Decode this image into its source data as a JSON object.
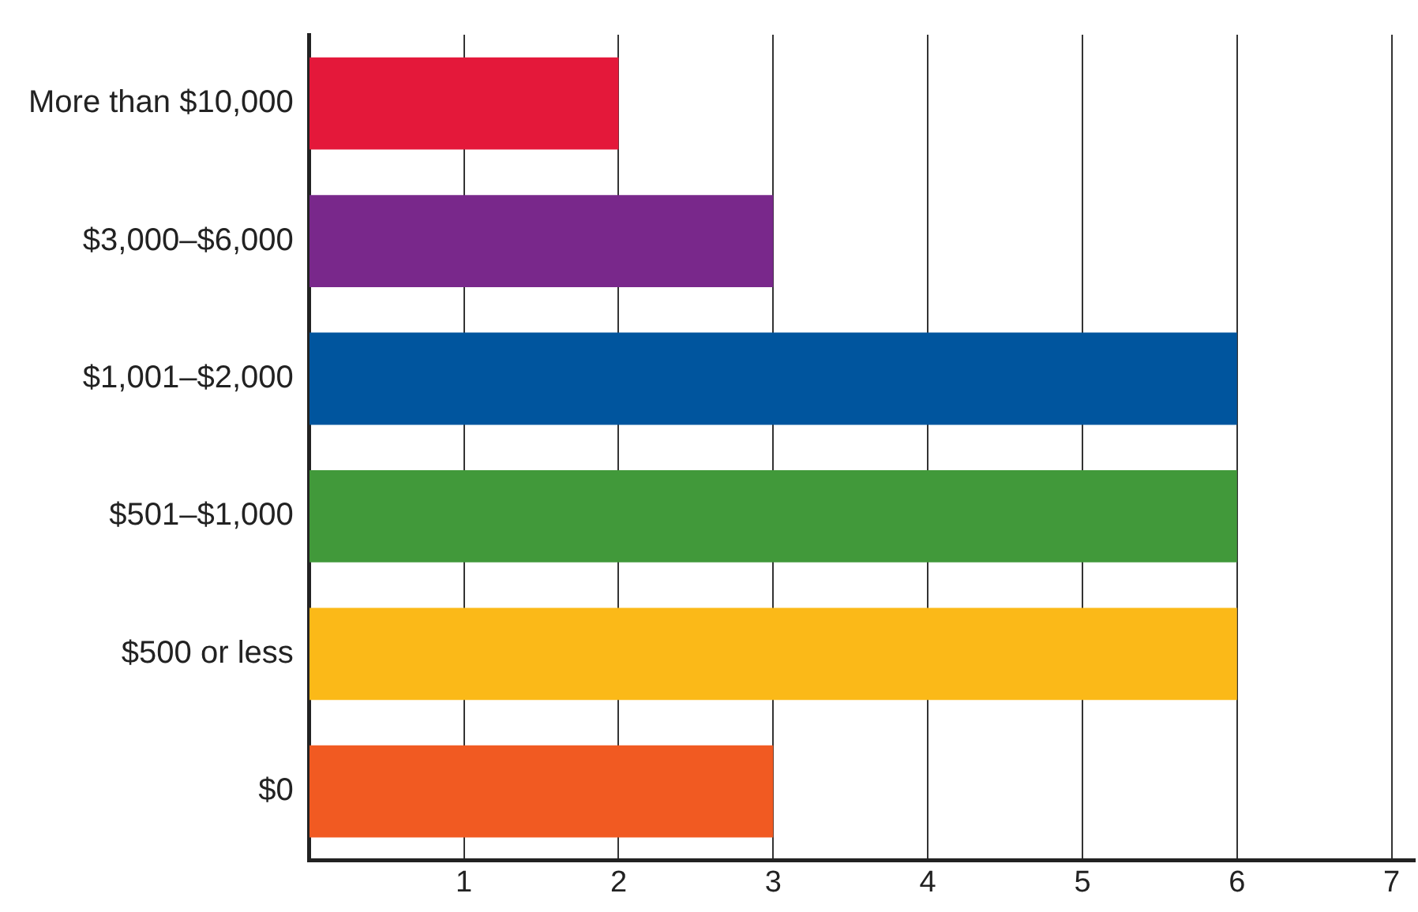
{
  "chart_data": {
    "type": "bar",
    "orientation": "horizontal",
    "categories": [
      "More than $10,000",
      "$3,000–$6,000",
      "$1,001–$2,000",
      "$501–$1,000",
      "$500 or less",
      "$0"
    ],
    "values": [
      2,
      3,
      6,
      6,
      6,
      3
    ],
    "colors": [
      "#e4183a",
      "#79288b",
      "#00559e",
      "#41993a",
      "#fbb918",
      "#f15a22"
    ],
    "xlim": [
      0,
      7.15
    ],
    "xticks": [
      1,
      2,
      3,
      4,
      5,
      6,
      7
    ],
    "grid": "x",
    "legend": false
  }
}
